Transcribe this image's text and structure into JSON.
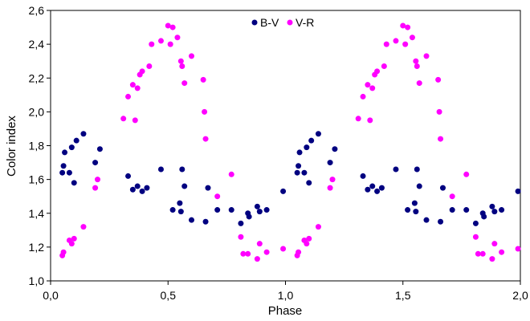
{
  "chart_data": {
    "type": "scatter",
    "title": "",
    "xlabel": "Phase",
    "ylabel": "Color index",
    "xlim": [
      0.0,
      2.0
    ],
    "ylim": [
      1.0,
      2.6
    ],
    "x_ticks": [
      0.0,
      0.5,
      1.0,
      1.5,
      2.0
    ],
    "x_tick_labels": [
      "0,0",
      "0,5",
      "1,0",
      "1,5",
      "2,0"
    ],
    "y_ticks": [
      1.0,
      1.2,
      1.4,
      1.6,
      1.8,
      2.0,
      2.2,
      2.4,
      2.6
    ],
    "y_tick_labels": [
      "1,0",
      "1,2",
      "1,4",
      "1,6",
      "1,8",
      "2,0",
      "2,2",
      "2,4",
      "2,6"
    ],
    "grid": false,
    "legend_position": "top-center",
    "series": [
      {
        "name": "B-V",
        "color": "#000080",
        "points": [
          [
            0.05,
            1.64
          ],
          [
            0.055,
            1.68
          ],
          [
            0.06,
            1.76
          ],
          [
            0.08,
            1.64
          ],
          [
            0.09,
            1.79
          ],
          [
            0.1,
            1.58
          ],
          [
            0.11,
            1.83
          ],
          [
            0.14,
            1.87
          ],
          [
            0.19,
            1.7
          ],
          [
            0.21,
            1.78
          ],
          [
            0.33,
            1.62
          ],
          [
            0.35,
            1.54
          ],
          [
            0.37,
            1.56
          ],
          [
            0.39,
            1.53
          ],
          [
            0.41,
            1.55
          ],
          [
            0.47,
            1.66
          ],
          [
            0.52,
            1.42
          ],
          [
            0.55,
            1.46
          ],
          [
            0.555,
            1.41
          ],
          [
            0.56,
            1.66
          ],
          [
            0.57,
            1.56
          ],
          [
            0.6,
            1.36
          ],
          [
            0.66,
            1.35
          ],
          [
            0.67,
            1.55
          ],
          [
            0.71,
            1.42
          ],
          [
            0.77,
            1.42
          ],
          [
            0.81,
            1.34
          ],
          [
            0.84,
            1.4
          ],
          [
            0.845,
            1.38
          ],
          [
            0.88,
            1.44
          ],
          [
            0.89,
            1.41
          ],
          [
            0.92,
            1.42
          ],
          [
            0.99,
            1.53
          ],
          [
            1.05,
            1.64
          ],
          [
            1.055,
            1.68
          ],
          [
            1.06,
            1.76
          ],
          [
            1.08,
            1.64
          ],
          [
            1.09,
            1.79
          ],
          [
            1.1,
            1.58
          ],
          [
            1.11,
            1.83
          ],
          [
            1.14,
            1.87
          ],
          [
            1.19,
            1.7
          ],
          [
            1.21,
            1.78
          ],
          [
            1.33,
            1.62
          ],
          [
            1.35,
            1.54
          ],
          [
            1.37,
            1.56
          ],
          [
            1.39,
            1.53
          ],
          [
            1.41,
            1.55
          ],
          [
            1.47,
            1.66
          ],
          [
            1.52,
            1.42
          ],
          [
            1.55,
            1.46
          ],
          [
            1.555,
            1.41
          ],
          [
            1.56,
            1.66
          ],
          [
            1.57,
            1.56
          ],
          [
            1.6,
            1.36
          ],
          [
            1.66,
            1.35
          ],
          [
            1.67,
            1.55
          ],
          [
            1.71,
            1.42
          ],
          [
            1.77,
            1.42
          ],
          [
            1.81,
            1.34
          ],
          [
            1.84,
            1.4
          ],
          [
            1.845,
            1.38
          ],
          [
            1.88,
            1.44
          ],
          [
            1.89,
            1.41
          ],
          [
            1.92,
            1.42
          ],
          [
            1.99,
            1.53
          ]
        ]
      },
      {
        "name": "V-R",
        "color": "#ff00ff",
        "points": [
          [
            0.05,
            1.15
          ],
          [
            0.055,
            1.17
          ],
          [
            0.08,
            1.24
          ],
          [
            0.09,
            1.22
          ],
          [
            0.1,
            1.25
          ],
          [
            0.14,
            1.32
          ],
          [
            0.19,
            1.55
          ],
          [
            0.2,
            1.6
          ],
          [
            0.31,
            1.96
          ],
          [
            0.33,
            2.09
          ],
          [
            0.35,
            2.16
          ],
          [
            0.36,
            1.95
          ],
          [
            0.37,
            2.14
          ],
          [
            0.38,
            2.22
          ],
          [
            0.39,
            2.24
          ],
          [
            0.42,
            2.27
          ],
          [
            0.43,
            2.4
          ],
          [
            0.47,
            2.42
          ],
          [
            0.5,
            2.51
          ],
          [
            0.51,
            2.4
          ],
          [
            0.52,
            2.5
          ],
          [
            0.54,
            2.44
          ],
          [
            0.555,
            2.3
          ],
          [
            0.56,
            2.27
          ],
          [
            0.57,
            2.17
          ],
          [
            0.6,
            2.33
          ],
          [
            0.65,
            2.19
          ],
          [
            0.655,
            2.0
          ],
          [
            0.66,
            1.84
          ],
          [
            0.71,
            1.5
          ],
          [
            0.77,
            1.63
          ],
          [
            0.81,
            1.26
          ],
          [
            0.82,
            1.16
          ],
          [
            0.84,
            1.16
          ],
          [
            0.88,
            1.13
          ],
          [
            0.89,
            1.22
          ],
          [
            0.92,
            1.17
          ],
          [
            0.99,
            1.19
          ],
          [
            1.05,
            1.15
          ],
          [
            1.055,
            1.17
          ],
          [
            1.08,
            1.24
          ],
          [
            1.09,
            1.22
          ],
          [
            1.1,
            1.25
          ],
          [
            1.14,
            1.32
          ],
          [
            1.19,
            1.55
          ],
          [
            1.2,
            1.6
          ],
          [
            1.31,
            1.96
          ],
          [
            1.33,
            2.09
          ],
          [
            1.35,
            2.16
          ],
          [
            1.36,
            1.95
          ],
          [
            1.37,
            2.14
          ],
          [
            1.38,
            2.22
          ],
          [
            1.39,
            2.24
          ],
          [
            1.42,
            2.27
          ],
          [
            1.43,
            2.4
          ],
          [
            1.47,
            2.42
          ],
          [
            1.5,
            2.51
          ],
          [
            1.51,
            2.4
          ],
          [
            1.52,
            2.5
          ],
          [
            1.54,
            2.44
          ],
          [
            1.555,
            2.3
          ],
          [
            1.56,
            2.27
          ],
          [
            1.57,
            2.17
          ],
          [
            1.6,
            2.33
          ],
          [
            1.65,
            2.19
          ],
          [
            1.655,
            2.0
          ],
          [
            1.66,
            1.84
          ],
          [
            1.71,
            1.5
          ],
          [
            1.77,
            1.63
          ],
          [
            1.81,
            1.26
          ],
          [
            1.82,
            1.16
          ],
          [
            1.84,
            1.16
          ],
          [
            1.88,
            1.13
          ],
          [
            1.89,
            1.22
          ],
          [
            1.92,
            1.17
          ],
          [
            1.99,
            1.19
          ]
        ]
      }
    ]
  }
}
